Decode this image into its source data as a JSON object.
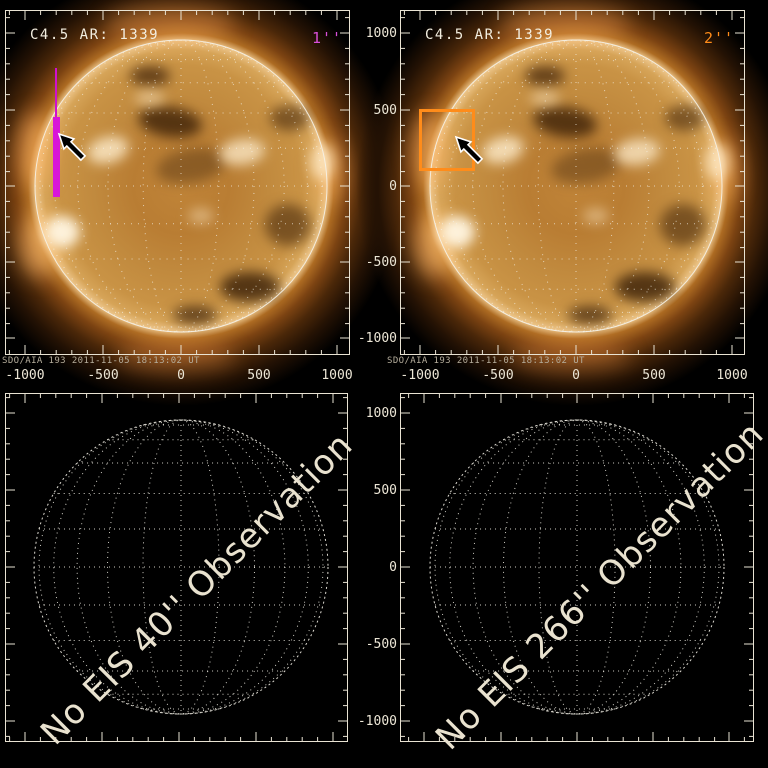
{
  "colors": {
    "slit_magenta": "#d816d8",
    "fov_orange": "#ff8c1a",
    "axis_cream": "#e9e3d3",
    "annotation_cream": "#e9e2cf"
  },
  "panels": {
    "top_left": {
      "title": "C4.5 AR: 1339",
      "slit_width_label": "1''",
      "footer": "SDO/AIA 193  2011-11-05  18:13:02 UT",
      "x_tick_labels": [
        "-1000",
        "-500",
        "0",
        "500",
        "1000"
      ]
    },
    "top_right": {
      "title": "C4.5 AR: 1339",
      "slit_width_label": "2''",
      "footer": "SDO/AIA 193  2011-11-05  18:13:02 UT",
      "x_tick_labels": [
        "-1000",
        "-500",
        "0",
        "500",
        "1000"
      ],
      "y_tick_labels": [
        "1000",
        "500",
        "0",
        "-500",
        "-1000"
      ]
    },
    "bottom_left": {
      "message": "No EIS 40'' Observation"
    },
    "bottom_right": {
      "message": "No EIS 266'' Observation",
      "y_tick_labels": [
        "1000",
        "500",
        "0",
        "-500",
        "-1000"
      ]
    }
  }
}
